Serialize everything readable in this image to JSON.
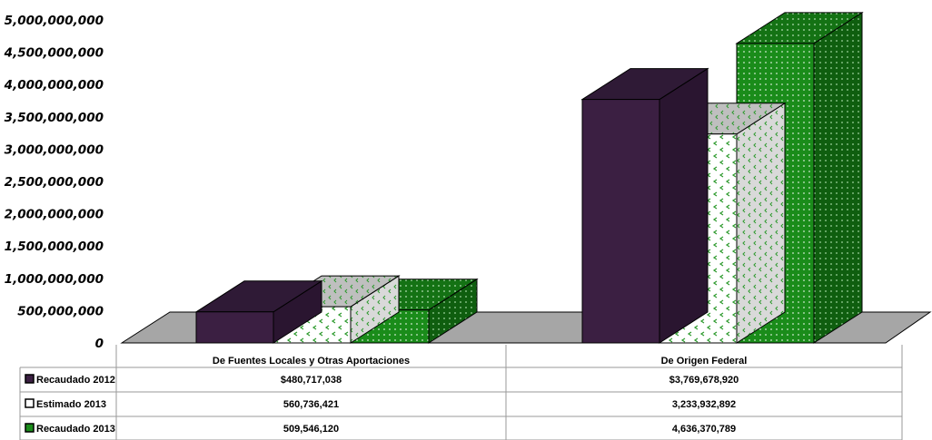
{
  "chart_data": {
    "type": "bar",
    "style": "3d-clustered-column",
    "categories": [
      "De Fuentes Locales y Otras Aportaciones",
      "De Origen Federal"
    ],
    "series": [
      {
        "name": "Recaudado 2012",
        "values": [
          480717038,
          3769678920
        ],
        "labels": [
          "$480,717,038",
          "$3,769,678,920"
        ],
        "color": "#3b1f42",
        "pattern": "solid"
      },
      {
        "name": "Estimado 2013",
        "values": [
          560736421,
          3233932892
        ],
        "labels": [
          "560,736,421",
          "3,233,932,892"
        ],
        "color": "#ffffff",
        "pattern": "green-chevron-dots"
      },
      {
        "name": "Recaudado 2013",
        "values": [
          509546120,
          4636370789
        ],
        "labels": [
          "509,546,120",
          "4,636,370,789"
        ],
        "color": "#1a8c1a",
        "pattern": "dotted"
      }
    ],
    "yticks": [
      "0",
      "500,000,000",
      "1,000,000,000",
      "1,500,000,000",
      "2,000,000,000",
      "2,500,000,000",
      "3,000,000,000",
      "3,500,000,000",
      "4,000,000,000",
      "4,500,000,000",
      "5,000,000,000"
    ],
    "ylim": [
      0,
      5000000000
    ],
    "floor_color": "#a6a6a6",
    "legend": "data-table"
  }
}
